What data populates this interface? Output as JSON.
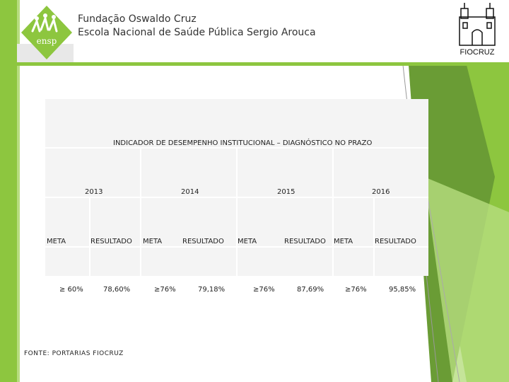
{
  "header": {
    "org_line1": "Fundação Oswaldo Cruz",
    "org_line2": "Escola Nacional de Saúde Pública Sergio Arouca",
    "logo_left_text": "ensp",
    "logo_right_text": "FIOCRUZ"
  },
  "table": {
    "title": "INDICADOR DE DESEMPENHO INSTITUCIONAL  – DIAGNÓSTICO NO PRAZO",
    "years": [
      "2013",
      "2014",
      "2015",
      "2016"
    ],
    "columns": [
      "META",
      "RESULTADO",
      "META",
      "RESULTADO",
      "META",
      "RESULTADO",
      "META",
      "RESULTADO"
    ],
    "values": [
      "≥ 60%",
      "78,60%",
      "≥76%",
      "79,18%",
      "≥76%",
      "87,69%",
      "≥76%",
      "95,85%"
    ]
  },
  "footer": {
    "source": "FONTE: PORTARIAS FIOCRUZ"
  },
  "colors": {
    "accent_green": "#8dc63f",
    "light_green": "#b7dd7f",
    "dark_green": "#6a9c35",
    "table_bg": "#f4f4f4"
  }
}
